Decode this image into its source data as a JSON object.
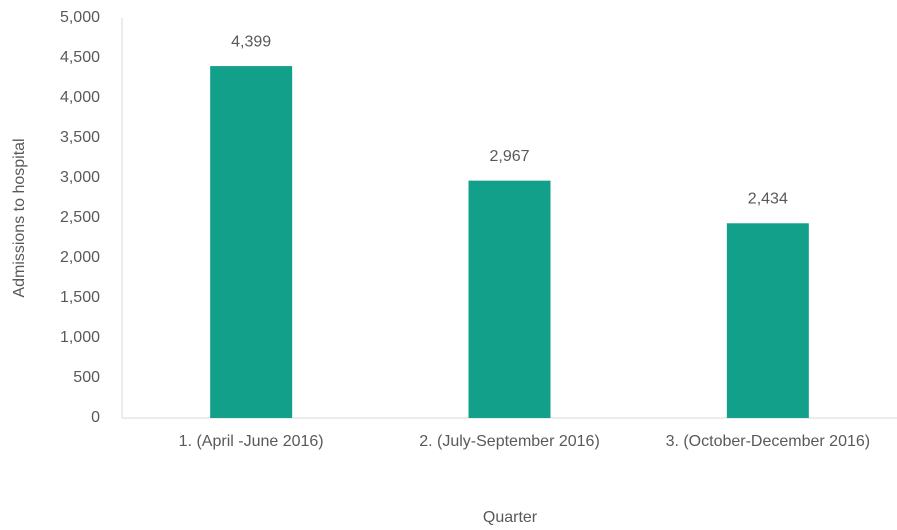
{
  "chart_data": {
    "type": "bar",
    "x_label": "Quarter",
    "y_label": "Admissions to hospital",
    "categories": [
      "1. (April -June 2016)",
      "2. (July-September 2016)",
      "3. (October-December 2016)"
    ],
    "values": [
      4399,
      2967,
      2434
    ],
    "value_labels": [
      "4,399",
      "2,967",
      "2,434"
    ],
    "color": "#13a08a",
    "ylim": [
      0,
      5000
    ],
    "yticks": [
      0,
      500,
      {
        "value": 1000,
        "label": "1,000"
      },
      {
        "value": 1500,
        "label": "1,500"
      },
      {
        "value": 2000,
        "label": "2,000"
      },
      {
        "value": 2500,
        "label": "2,500"
      },
      {
        "value": 3000,
        "label": "3,000"
      },
      {
        "value": 3500,
        "label": "3,500"
      },
      {
        "value": 4000,
        "label": "4,000"
      },
      {
        "value": 4500,
        "label": "4,500"
      },
      {
        "value": 5000,
        "label": "5,000"
      }
    ],
    "grid": false
  }
}
